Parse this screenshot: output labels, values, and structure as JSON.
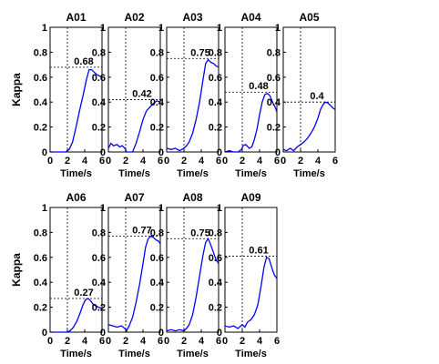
{
  "chart_data": {
    "type": "line",
    "xlabel": "Time/s",
    "ylabel": "Kappa",
    "xlim": [
      0,
      6
    ],
    "ylim": [
      0,
      1
    ],
    "xticks": [
      "0",
      "2",
      "4",
      "6"
    ],
    "yticks": [
      "0",
      "0.2",
      "0.4",
      "0.6",
      "0.8",
      "1"
    ],
    "series_color": "#0000ff",
    "reference_line": {
      "x": 2,
      "style": "dotted"
    },
    "panels": [
      {
        "title": "A01",
        "peak_label": "0.68",
        "peak": 0.68,
        "x": [
          0,
          1,
          1.8,
          2.2,
          2.6,
          3.0,
          3.4,
          3.8,
          4.2,
          4.5,
          4.8,
          5.1,
          5.4,
          5.7,
          6
        ],
        "y": [
          0,
          0,
          0,
          0.02,
          0.08,
          0.2,
          0.33,
          0.45,
          0.58,
          0.66,
          0.66,
          0.64,
          0.62,
          0.61,
          0.6
        ]
      },
      {
        "title": "A02",
        "peak_label": "0.42",
        "peak": 0.42,
        "x": [
          0,
          0.3,
          0.6,
          1.0,
          1.3,
          1.6,
          1.9,
          2.1,
          2.4,
          2.8,
          3.2,
          3.6,
          4.0,
          4.4,
          4.8,
          5.2,
          5.6,
          6
        ],
        "y": [
          0.03,
          0.07,
          0.05,
          0.06,
          0.04,
          0.05,
          0.03,
          0.0,
          0.0,
          0.0,
          0.07,
          0.16,
          0.26,
          0.33,
          0.36,
          0.39,
          0.41,
          0.4
        ]
      },
      {
        "title": "A03",
        "peak_label": "0.75",
        "peak": 0.75,
        "x": [
          0,
          0.5,
          1.0,
          1.5,
          2.0,
          2.3,
          2.6,
          3.0,
          3.4,
          3.8,
          4.2,
          4.5,
          4.8,
          5.1,
          5.4,
          5.7,
          6
        ],
        "y": [
          0.03,
          0.02,
          0.03,
          0.01,
          0.03,
          0.05,
          0.08,
          0.15,
          0.26,
          0.4,
          0.58,
          0.71,
          0.74,
          0.72,
          0.71,
          0.69,
          0.68
        ]
      },
      {
        "title": "A04",
        "peak_label": "0.48",
        "peak": 0.48,
        "x": [
          0,
          0.5,
          1.0,
          1.5,
          1.9,
          2.1,
          2.4,
          2.8,
          3.1,
          3.4,
          3.7,
          4.0,
          4.3,
          4.6,
          4.9,
          5.2,
          5.5,
          5.8,
          6
        ],
        "y": [
          0.0,
          0.01,
          0.0,
          0.0,
          0.02,
          0.05,
          0.06,
          0.03,
          0.04,
          0.1,
          0.18,
          0.3,
          0.4,
          0.46,
          0.47,
          0.45,
          0.4,
          0.36,
          0.32
        ]
      },
      {
        "title": "A05",
        "peak_label": "0.4",
        "peak": 0.4,
        "x": [
          0,
          0.4,
          0.8,
          1.2,
          1.6,
          2.0,
          2.4,
          2.8,
          3.2,
          3.6,
          4.0,
          4.3,
          4.6,
          4.9,
          5.2,
          5.5,
          5.8,
          6
        ],
        "y": [
          0.02,
          0.01,
          0.03,
          0.01,
          0.04,
          0.06,
          0.08,
          0.11,
          0.15,
          0.2,
          0.27,
          0.34,
          0.38,
          0.4,
          0.39,
          0.37,
          0.35,
          0.34
        ]
      },
      {
        "title": "A06",
        "peak_label": "0.27",
        "peak": 0.27,
        "x": [
          0,
          1.0,
          2.0,
          2.3,
          2.7,
          3.1,
          3.5,
          3.8,
          4.1,
          4.4,
          4.7,
          5.0,
          5.3,
          5.6,
          6
        ],
        "y": [
          0,
          0,
          0,
          0.01,
          0.04,
          0.09,
          0.16,
          0.22,
          0.26,
          0.27,
          0.25,
          0.22,
          0.21,
          0.2,
          0.19
        ]
      },
      {
        "title": "A07",
        "peak_label": "0.77",
        "peak": 0.77,
        "x": [
          0,
          0.5,
          1.0,
          1.5,
          1.9,
          2.1,
          2.4,
          2.8,
          3.2,
          3.6,
          4.0,
          4.3,
          4.6,
          4.9,
          5.2,
          5.5,
          5.8,
          6
        ],
        "y": [
          0.06,
          0.05,
          0.04,
          0.05,
          0.03,
          0.01,
          0.05,
          0.12,
          0.24,
          0.38,
          0.55,
          0.68,
          0.75,
          0.77,
          0.76,
          0.74,
          0.73,
          0.71
        ]
      },
      {
        "title": "A08",
        "peak_label": "0.75",
        "peak": 0.75,
        "x": [
          0,
          0.5,
          1.0,
          1.5,
          2.0,
          2.3,
          2.6,
          3.0,
          3.4,
          3.8,
          4.2,
          4.5,
          4.8,
          5.1,
          5.4,
          5.7,
          6
        ],
        "y": [
          0.01,
          0.02,
          0.01,
          0.02,
          0.01,
          0.03,
          0.06,
          0.14,
          0.28,
          0.45,
          0.62,
          0.72,
          0.75,
          0.7,
          0.64,
          0.58,
          0.55
        ]
      },
      {
        "title": "A09",
        "peak_label": "0.61",
        "peak": 0.61,
        "x": [
          0,
          0.5,
          1.0,
          1.5,
          2.0,
          2.3,
          2.6,
          3.0,
          3.4,
          3.8,
          4.2,
          4.5,
          4.8,
          5.1,
          5.4,
          5.7,
          6
        ],
        "y": [
          0.05,
          0.04,
          0.05,
          0.03,
          0.06,
          0.04,
          0.08,
          0.1,
          0.14,
          0.22,
          0.38,
          0.52,
          0.6,
          0.59,
          0.52,
          0.46,
          0.43
        ]
      }
    ]
  }
}
